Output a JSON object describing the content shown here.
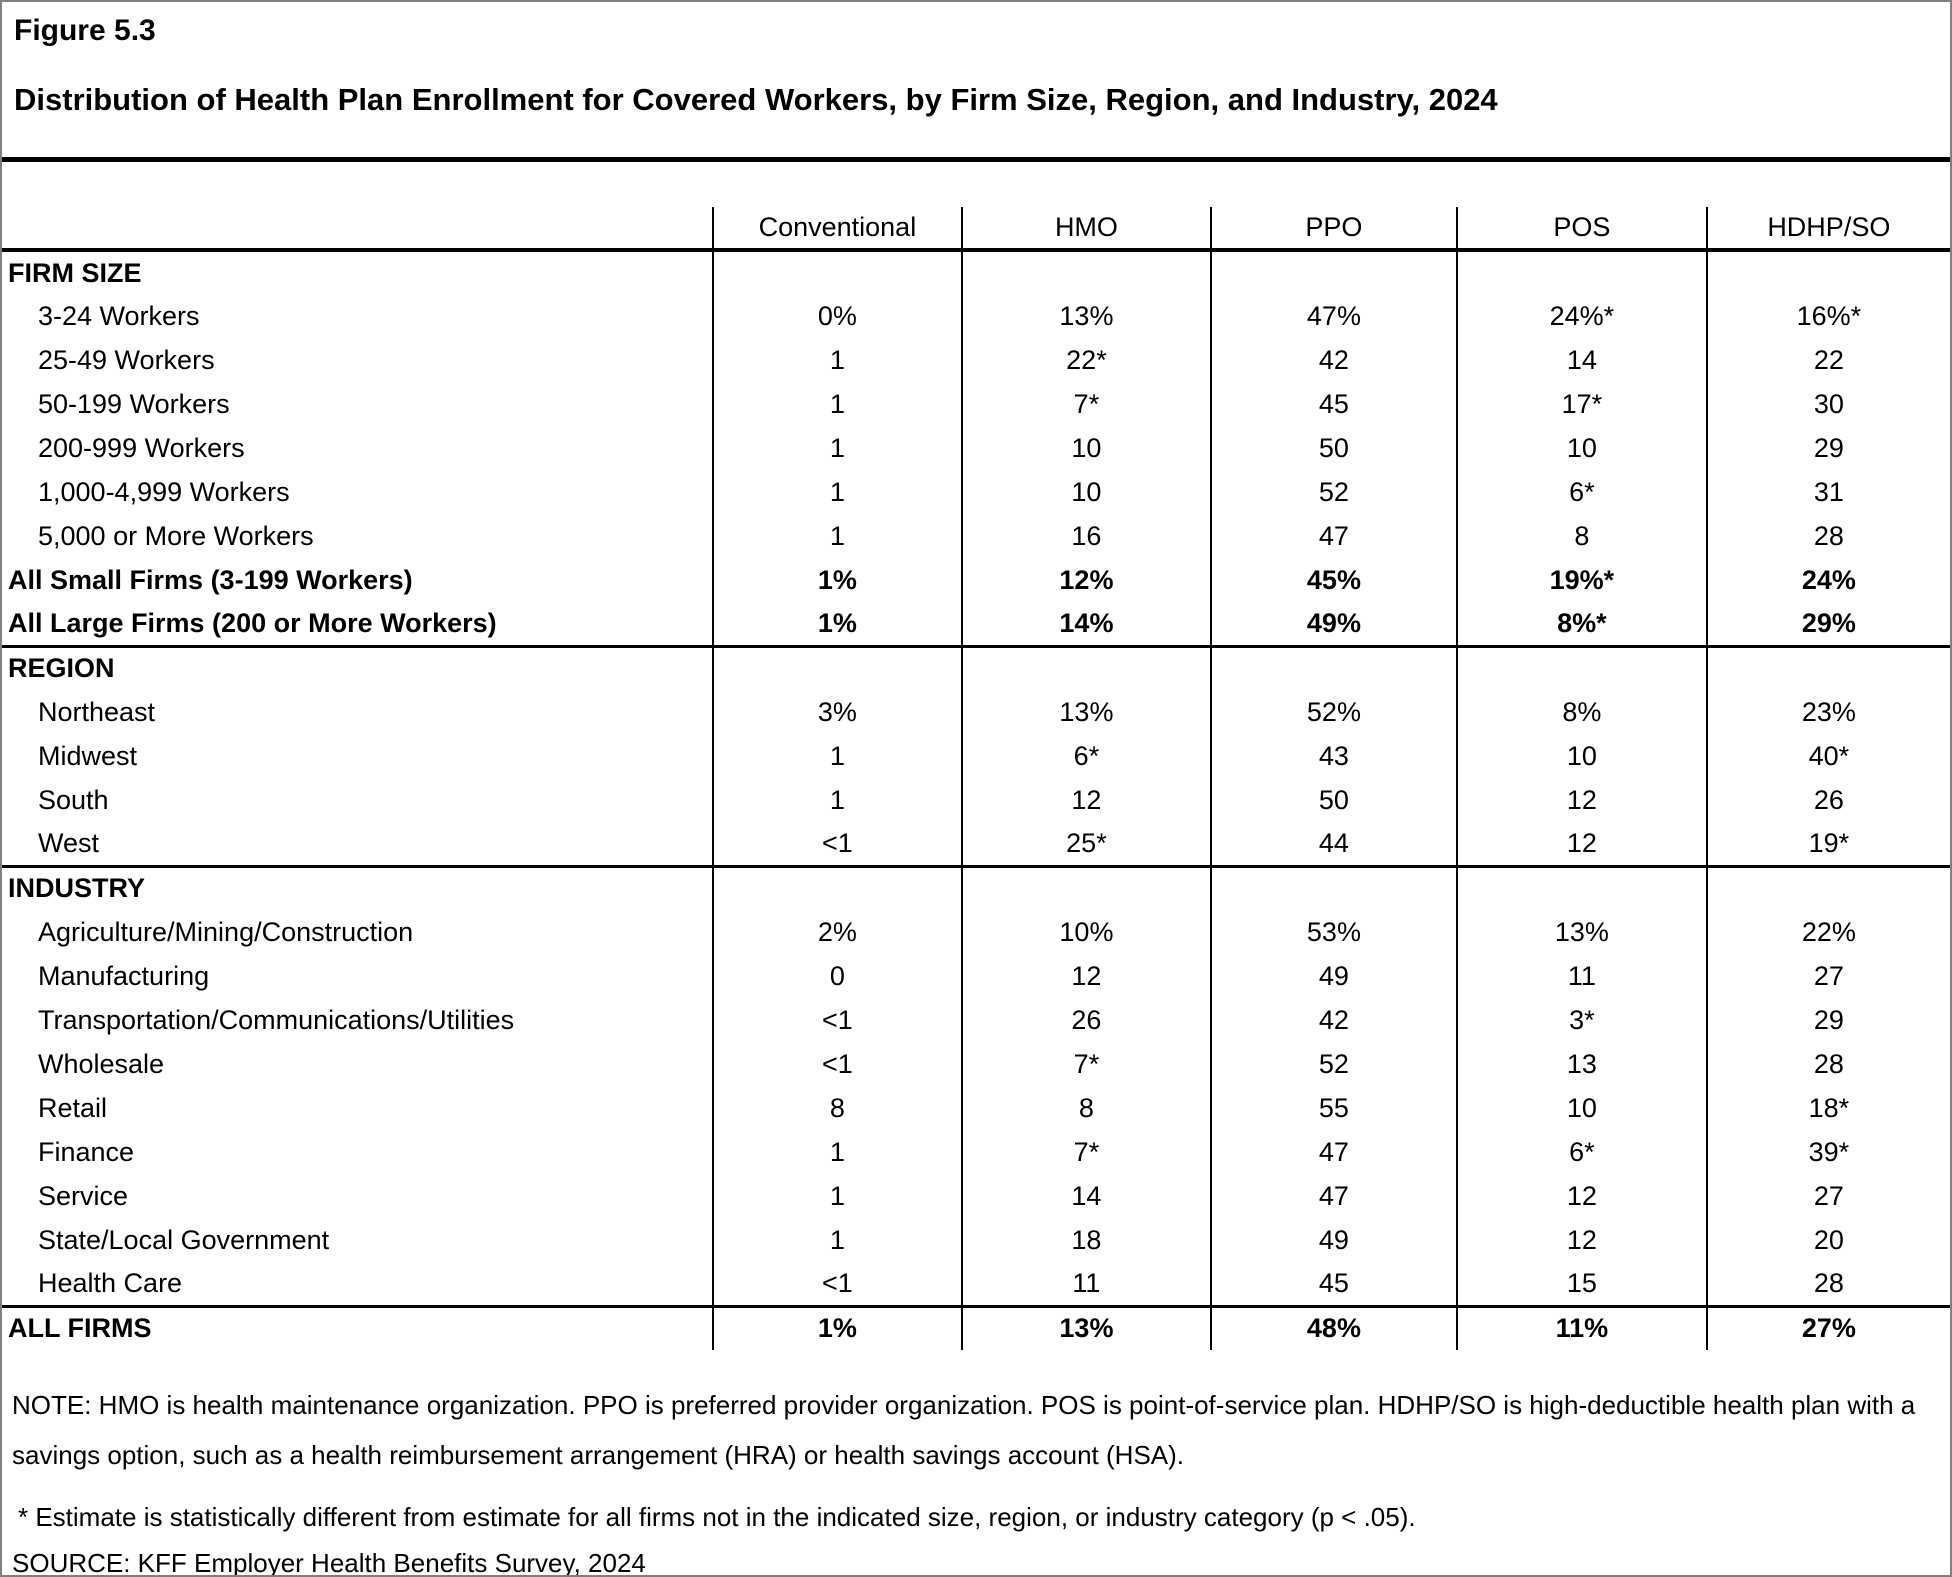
{
  "figure_label": "Figure 5.3",
  "title": "Distribution of Health Plan Enrollment for Covered Workers, by Firm Size, Region, and Industry, 2024",
  "table": {
    "columns": [
      "Conventional",
      "HMO",
      "PPO",
      "POS",
      "HDHP/SO"
    ],
    "sections": [
      {
        "header": "FIRM SIZE",
        "rows": [
          {
            "label": "3-24 Workers",
            "values": [
              "0%",
              "13%",
              "47%",
              "24%*",
              "16%*"
            ]
          },
          {
            "label": "25-49 Workers",
            "values": [
              "1",
              "22*",
              "42",
              "14",
              "22"
            ]
          },
          {
            "label": "50-199 Workers",
            "values": [
              "1",
              "7*",
              "45",
              "17*",
              "30"
            ]
          },
          {
            "label": "200-999 Workers",
            "values": [
              "1",
              "10",
              "50",
              "10",
              "29"
            ]
          },
          {
            "label": "1,000-4,999 Workers",
            "values": [
              "1",
              "10",
              "52",
              "6*",
              "31"
            ]
          },
          {
            "label": "5,000 or More Workers",
            "values": [
              "1",
              "16",
              "47",
              "8",
              "28"
            ]
          },
          {
            "label": "All Small Firms (3-199 Workers)",
            "values": [
              "1%",
              "12%",
              "45%",
              "19%*",
              "24%"
            ],
            "bold": true
          },
          {
            "label": "All Large Firms (200 or More Workers)",
            "values": [
              "1%",
              "14%",
              "49%",
              "8%*",
              "29%"
            ],
            "bold": true
          }
        ]
      },
      {
        "header": "REGION",
        "rows": [
          {
            "label": "Northeast",
            "values": [
              "3%",
              "13%",
              "52%",
              "8%",
              "23%"
            ]
          },
          {
            "label": "Midwest",
            "values": [
              "1",
              "6*",
              "43",
              "10",
              "40*"
            ]
          },
          {
            "label": "South",
            "values": [
              "1",
              "12",
              "50",
              "12",
              "26"
            ]
          },
          {
            "label": "West",
            "values": [
              "<1",
              "25*",
              "44",
              "12",
              "19*"
            ]
          }
        ]
      },
      {
        "header": "INDUSTRY",
        "rows": [
          {
            "label": "Agriculture/Mining/Construction",
            "values": [
              "2%",
              "10%",
              "53%",
              "13%",
              "22%"
            ]
          },
          {
            "label": "Manufacturing",
            "values": [
              "0",
              "12",
              "49",
              "11",
              "27"
            ]
          },
          {
            "label": "Transportation/Communications/Utilities",
            "values": [
              "<1",
              "26",
              "42",
              "3*",
              "29"
            ]
          },
          {
            "label": "Wholesale",
            "values": [
              "<1",
              "7*",
              "52",
              "13",
              "28"
            ]
          },
          {
            "label": "Retail",
            "values": [
              "8",
              "8",
              "55",
              "10",
              "18*"
            ]
          },
          {
            "label": "Finance",
            "values": [
              "1",
              "7*",
              "47",
              "6*",
              "39*"
            ]
          },
          {
            "label": "Service",
            "values": [
              "1",
              "14",
              "47",
              "12",
              "27"
            ]
          },
          {
            "label": "State/Local Government",
            "values": [
              "1",
              "18",
              "49",
              "12",
              "20"
            ]
          },
          {
            "label": "Health Care",
            "values": [
              "<1",
              "11",
              "45",
              "15",
              "28"
            ]
          }
        ]
      }
    ],
    "all_firms_row": {
      "label": "ALL FIRMS",
      "values": [
        "1%",
        "13%",
        "48%",
        "11%",
        "27%"
      ]
    }
  },
  "notes": {
    "note": "NOTE: HMO is health maintenance organization. PPO is preferred provider organization. POS is point-of-service plan. HDHP/SO is high-deductible health plan with a savings option, such as a health reimbursement arrangement (HRA) or health savings account (HSA).",
    "footnote": "* Estimate is statistically different from estimate for all firms not in the indicated size, region, or industry category (p < .05).",
    "source": "SOURCE: KFF Employer Health Benefits Survey, 2024"
  }
}
